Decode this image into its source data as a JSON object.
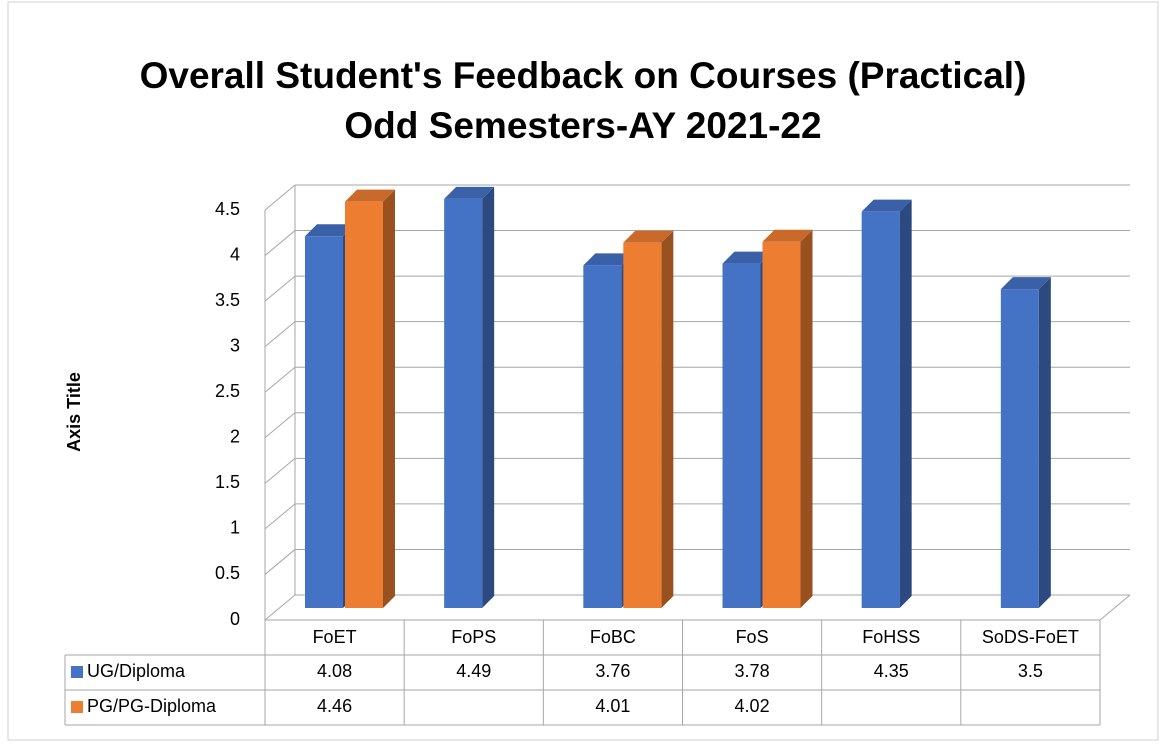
{
  "chart_data": {
    "type": "bar3d",
    "title": "Overall Student's Feedback on Courses (Practical)",
    "subtitle": "Odd Semesters-AY 2021-22",
    "y_label": "Axis Title",
    "categories": [
      "FoET",
      "FoPS",
      "FoBC",
      "FoS",
      "FoHSS",
      "SoDS-FoET"
    ],
    "series": [
      {
        "name": "UG/Diploma",
        "color": "#4472c4",
        "values": [
          4.08,
          4.49,
          3.76,
          3.78,
          4.35,
          3.5
        ]
      },
      {
        "name": "PG/PG-Diploma",
        "color": "#ed7d31",
        "values": [
          4.46,
          null,
          4.01,
          4.02,
          null,
          null
        ]
      }
    ],
    "ylim": [
      0,
      4.5
    ],
    "yticks": [
      0,
      0.5,
      1,
      1.5,
      2,
      2.5,
      3,
      3.5,
      4,
      4.5
    ],
    "grid": true,
    "data_table": true
  }
}
